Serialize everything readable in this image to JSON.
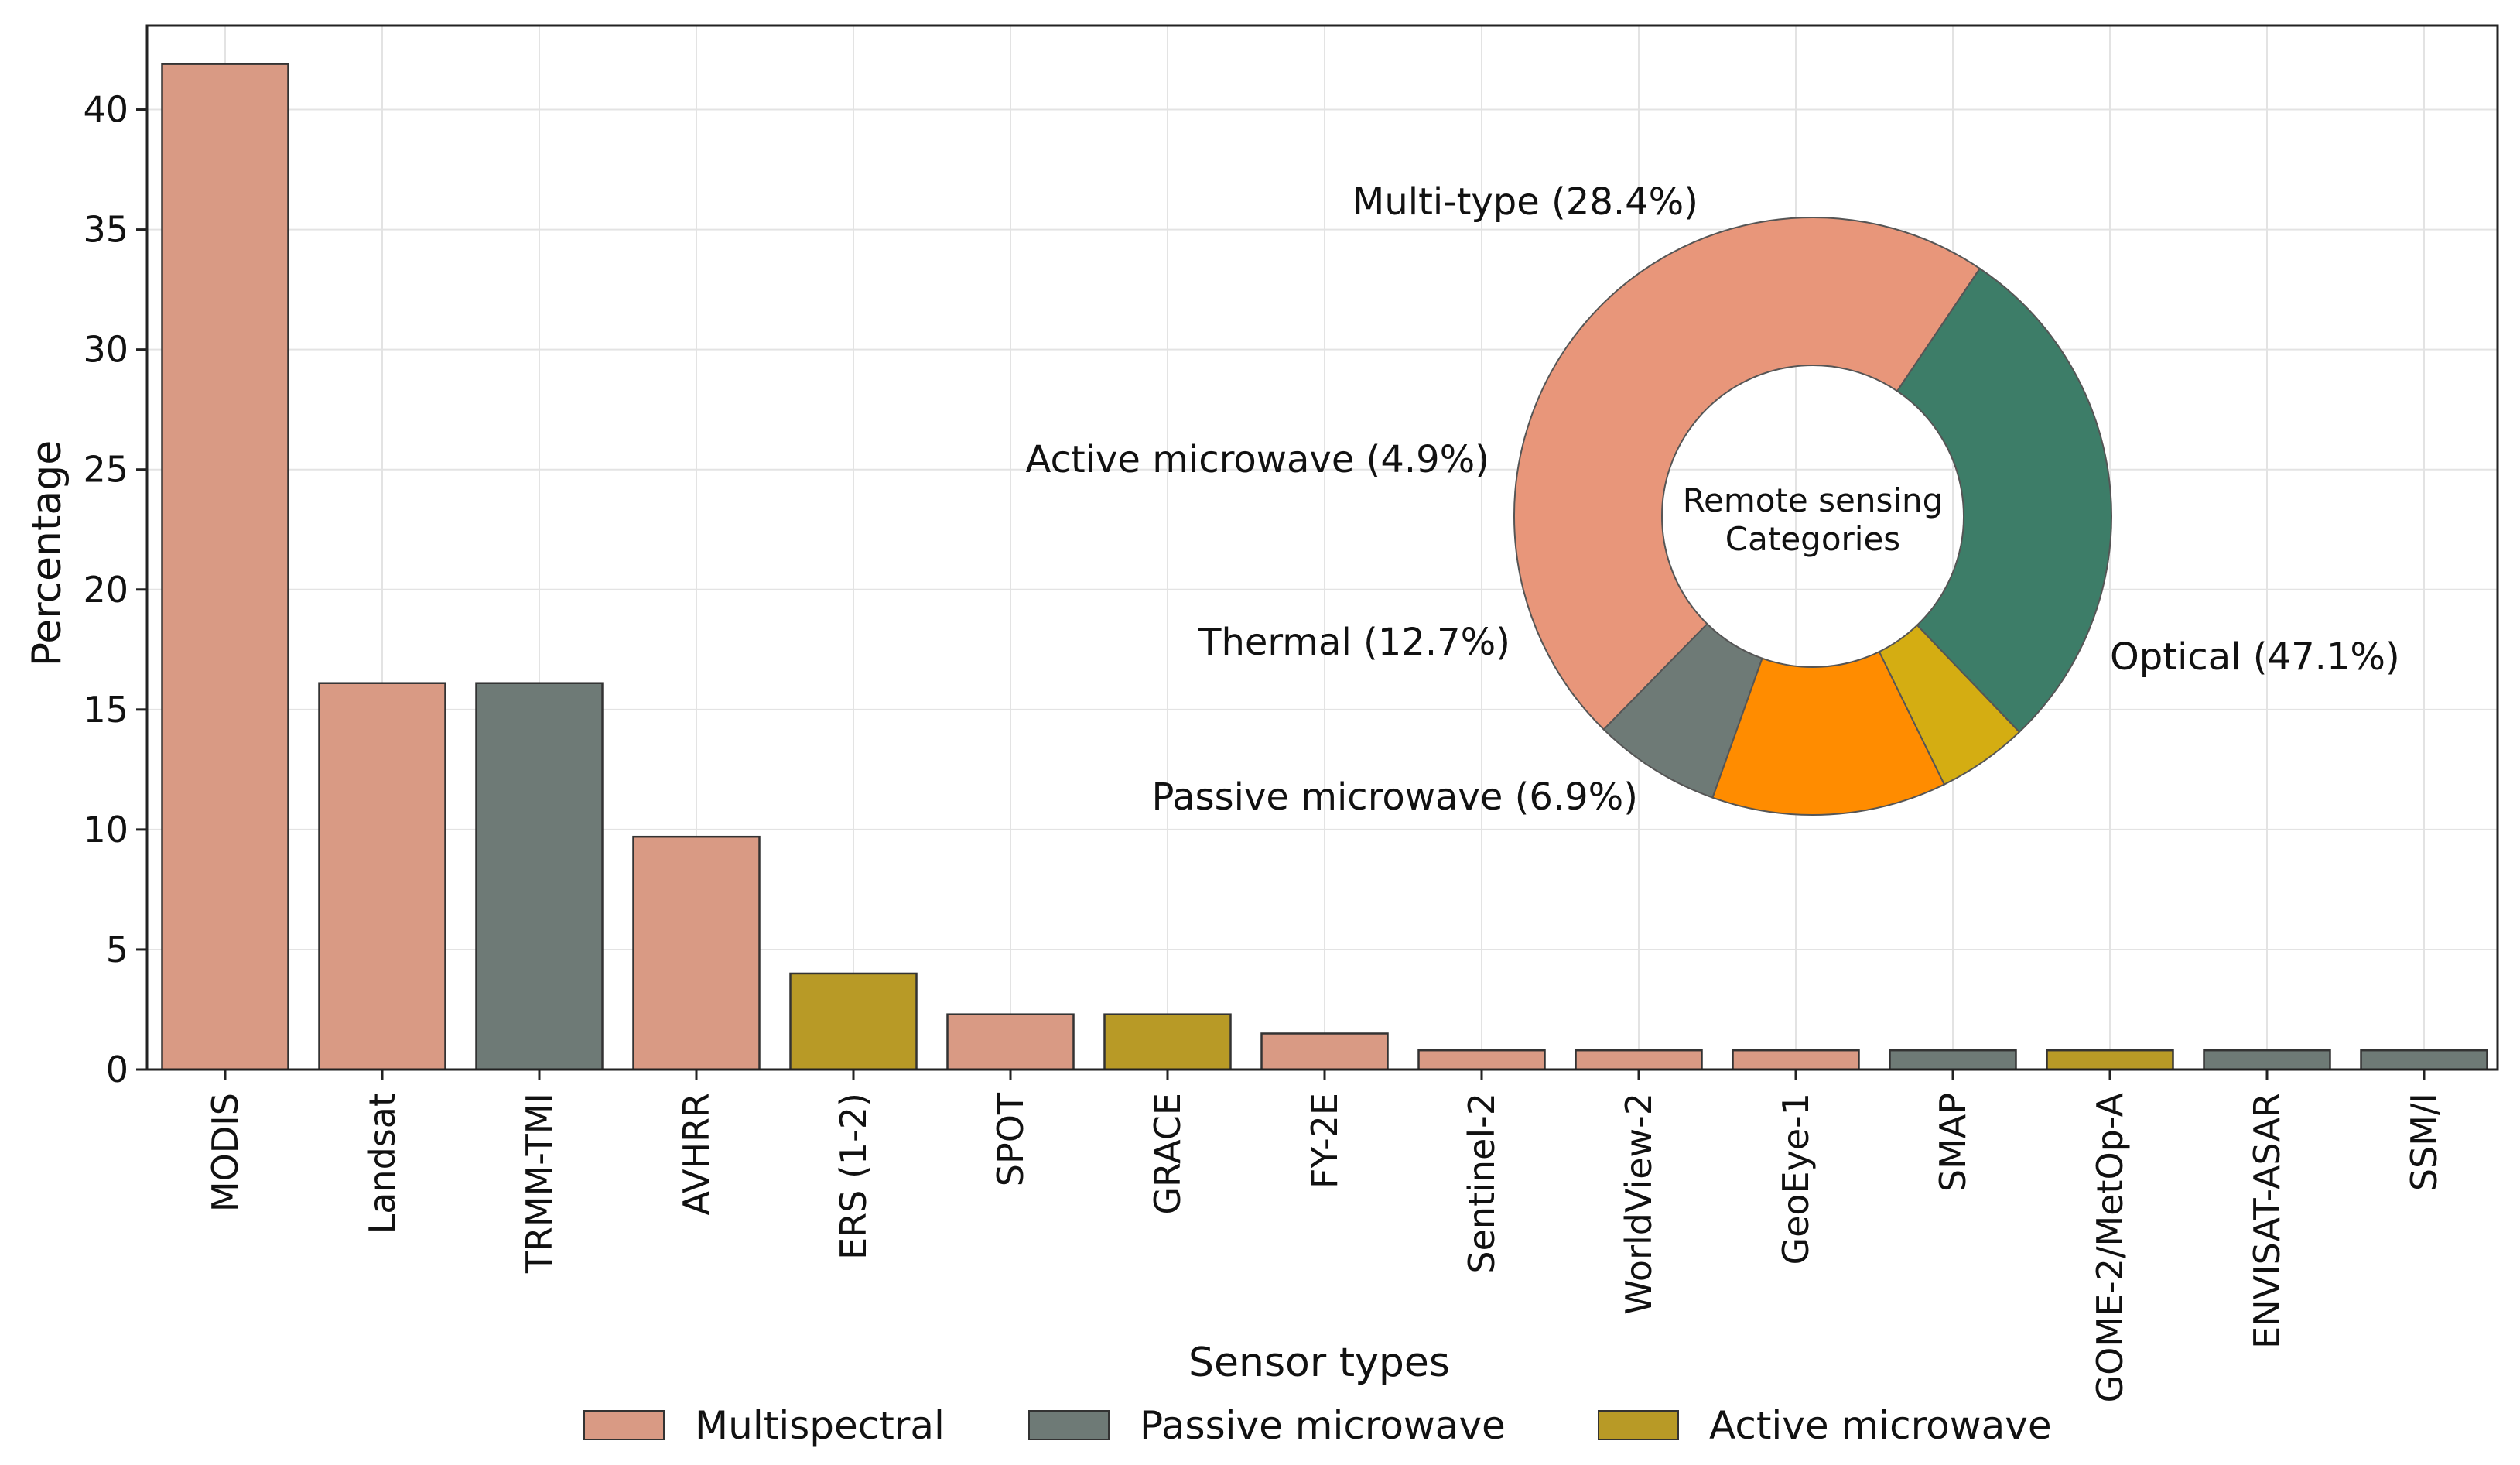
{
  "chart_data": [
    {
      "type": "bar",
      "xlabel": "Sensor types",
      "ylabel": "Percentage",
      "ylim": [
        0,
        43.5
      ],
      "yticks": [
        0,
        5,
        10,
        15,
        20,
        25,
        30,
        35,
        40
      ],
      "grid": true,
      "categories": [
        "MODIS",
        "Landsat",
        "TRMM-TMI",
        "AVHRR",
        "ERS (1-2)",
        "SPOT",
        "GRACE",
        "FY-2E",
        "Sentinel-2",
        "WorldView-2",
        "GeoEye-1",
        "SMAP",
        "GOME-2/MetOp-A",
        "ENVISAT-ASAR",
        "SSM/I"
      ],
      "values": [
        41.9,
        16.1,
        16.1,
        9.7,
        4.0,
        2.3,
        2.3,
        1.5,
        0.8,
        0.8,
        0.8,
        0.8,
        0.8,
        0.8,
        0.8
      ],
      "bar_types": [
        "Multispectral",
        "Multispectral",
        "Passive microwave",
        "Multispectral",
        "Active microwave",
        "Multispectral",
        "Active microwave",
        "Multispectral",
        "Multispectral",
        "Multispectral",
        "Multispectral",
        "Passive microwave",
        "Active microwave",
        "Passive microwave",
        "Passive microwave"
      ],
      "legend": [
        {
          "name": "Multispectral",
          "color": "#d99a84"
        },
        {
          "name": "Passive microwave",
          "color": "#6e7a76"
        },
        {
          "name": "Active microwave",
          "color": "#b89a26"
        }
      ],
      "legend_position": "bottom-center"
    },
    {
      "type": "pie",
      "donut": true,
      "center_label": [
        "Remote sensing",
        "Categories"
      ],
      "slices": [
        {
          "name": "Optical",
          "value": 47.1,
          "label": "Optical (47.1%)",
          "color": "#e8967a"
        },
        {
          "name": "Passive microwave",
          "value": 6.9,
          "label": "Passive microwave (6.9%)",
          "color": "#6e7a76"
        },
        {
          "name": "Thermal",
          "value": 12.7,
          "label": "Thermal (12.7%)",
          "color": "#ff8c00"
        },
        {
          "name": "Active microwave",
          "value": 4.9,
          "label": "Active microwave (4.9%)",
          "color": "#d4ad12"
        },
        {
          "name": "Multi-type",
          "value": 28.4,
          "label": "Multi-type (28.4%)",
          "color": "#3d7d68"
        }
      ]
    }
  ]
}
